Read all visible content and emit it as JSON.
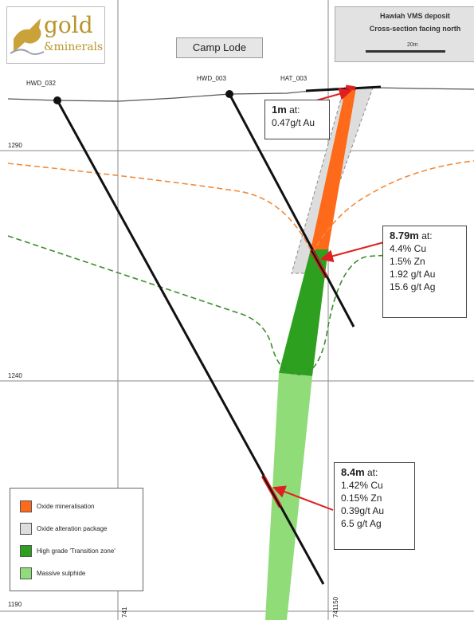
{
  "logo": {
    "text_top": "gold",
    "text_bottom": "&minerals"
  },
  "section_title": "Camp Lode",
  "title_block": {
    "line1": "Hawiah VMS deposit",
    "line2": "Cross-section facing north",
    "scale_label": "20m"
  },
  "elevations": [
    "1290",
    "1240",
    "1190"
  ],
  "eastings": [
    "741",
    "741150"
  ],
  "drillholes": [
    {
      "name": "HWD_032"
    },
    {
      "name": "HWD_003"
    },
    {
      "name": "HAT_003"
    }
  ],
  "intercepts": [
    {
      "head_bold": "1m",
      "head_rest": " at:",
      "lines": [
        "0.47g/t Au"
      ]
    },
    {
      "head_bold": "8.79m",
      "head_rest": " at:",
      "lines": [
        "4.4% Cu",
        "1.5% Zn",
        "1.92 g/t Au",
        "15.6 g/t Ag"
      ]
    },
    {
      "head_bold": "8.4m",
      "head_rest": " at:",
      "lines": [
        "1.42% Cu",
        "0.15% Zn",
        "0.39g/t Au",
        "6.5 g/t Ag"
      ]
    }
  ],
  "legend": [
    {
      "label": "Oxide mineralisation",
      "color": "#ff6a1a"
    },
    {
      "label": "Oxide alteration package",
      "color": "#dddddd"
    },
    {
      "label": "High grade 'Transition zone'",
      "color": "#2ea01f"
    },
    {
      "label": "Massive sulphide",
      "color": "#8fdc78"
    }
  ],
  "colors": {
    "oxide_boundary": "#f28a3a",
    "transition_boundary": "#3a8f2a",
    "intercept_arrow": "#e02020",
    "grid": "#8a8a8a"
  }
}
